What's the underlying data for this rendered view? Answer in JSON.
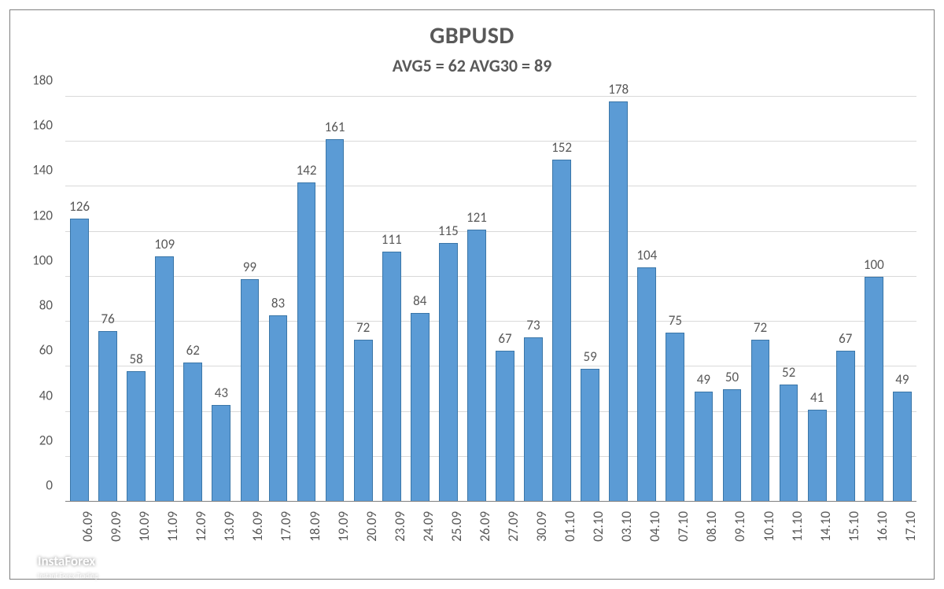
{
  "chart": {
    "type": "bar",
    "title": "GBPUSD",
    "subtitle": "AVG5 = 62 AVG30 = 89",
    "title_fontsize": 30,
    "subtitle_fontsize": 22,
    "title_color": "#595959",
    "background_color": "#ffffff",
    "border_color": "#7f7f7f",
    "grid_color": "#d9d9d9",
    "axis_label_color": "#595959",
    "axis_label_fontsize": 17,
    "value_label_fontsize": 17,
    "bar_fill": "#5b9bd5",
    "bar_border": "#3a76a8",
    "bar_width_ratio": 0.66,
    "ylim": [
      0,
      180
    ],
    "ytick_step": 20,
    "yticks": [
      0,
      20,
      40,
      60,
      80,
      100,
      120,
      140,
      160,
      180
    ],
    "categories": [
      "06.09",
      "09.09",
      "10.09",
      "11.09",
      "12.09",
      "13.09",
      "16.09",
      "17.09",
      "18.09",
      "19.09",
      "20.09",
      "23.09",
      "24.09",
      "25.09",
      "26.09",
      "27.09",
      "30.09",
      "01.10",
      "02.10",
      "03.10",
      "04.10",
      "07.10",
      "08.10",
      "09.10",
      "10.10",
      "11.10",
      "14.10",
      "15.10",
      "16.10",
      "17.10"
    ],
    "values": [
      126,
      76,
      58,
      109,
      62,
      43,
      99,
      83,
      142,
      161,
      72,
      111,
      84,
      115,
      121,
      67,
      73,
      152,
      59,
      178,
      104,
      75,
      49,
      50,
      72,
      52,
      41,
      67,
      100,
      49
    ]
  },
  "watermark": {
    "main": "InstaForex",
    "sub": "Instant Forex Trading",
    "main_fontsize": 17,
    "sub_fontsize": 9,
    "color": "#ffffff"
  }
}
